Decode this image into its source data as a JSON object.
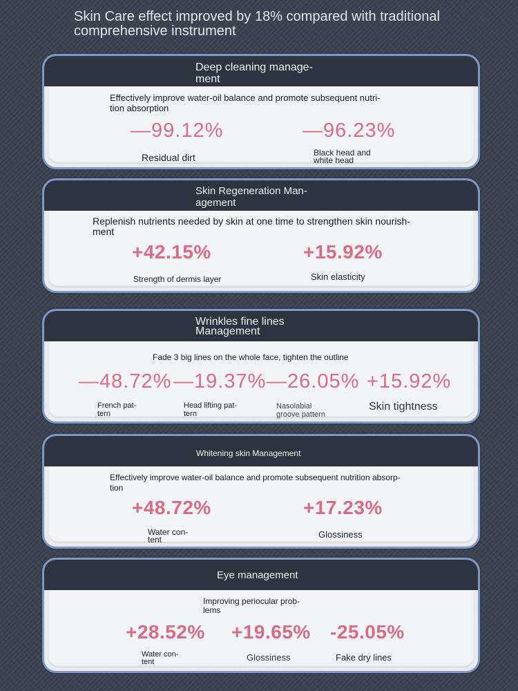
{
  "headline": "Skin Care effect improved by 18% compared with traditional comprehensive instrument",
  "cards": [
    {
      "title": "Deep cleaning manage-\nment",
      "description": "Effectively improve water-oil balance and promote subsequent nutri-\ntion absorption",
      "metrics": [
        {
          "value": "—99.12%",
          "label": "Residual dirt"
        },
        {
          "value": "—96.23%",
          "label": "Black head and\nwhite head"
        }
      ]
    },
    {
      "title": "Skin Regeneration Man-\nagement",
      "description": "Replenish nutrients needed by skin at one time to strengthen skin nourish-\nment",
      "metrics": [
        {
          "value": "+42.15%",
          "label": "Strength of dermis layer"
        },
        {
          "value": "+15.92%",
          "label": "Skin elasticity"
        }
      ]
    },
    {
      "title": "Wrinkles fine lines\nManagement",
      "description": "Fade 3 big lines on the whole face, tighten the outline",
      "metrics": [
        {
          "value": "—48.72%",
          "label": "French pat-\ntern"
        },
        {
          "value": "—19.37%",
          "label": "Head lifting pat-\ntern"
        },
        {
          "value": "—26.05%",
          "label": "Nasolabial\ngroove pattern"
        },
        {
          "value": "+15.92%",
          "label": "Skin tightness"
        }
      ]
    },
    {
      "title": "Whitening skin Management",
      "description": "Effectively improve water-oil balance and promote subsequent nutrition absorp-\ntion",
      "metrics": [
        {
          "value": "+48.72%",
          "label": "Water con-\ntent"
        },
        {
          "value": "+17.23%",
          "label": "Glossiness"
        }
      ]
    },
    {
      "title": "Eye management",
      "description": "Improving periocular prob-\nlems",
      "metrics": [
        {
          "value": "+28.52%",
          "label": "Water con-\ntent"
        },
        {
          "value": "+19.65%",
          "label": "Glossiness"
        },
        {
          "value": "-25.05%",
          "label": "Fake dry lines"
        }
      ]
    }
  ],
  "colors": {
    "background": "#3c4250",
    "card_header": "#2f3441",
    "card_border": "#7f97c4",
    "value_pink": "#d56d84"
  }
}
